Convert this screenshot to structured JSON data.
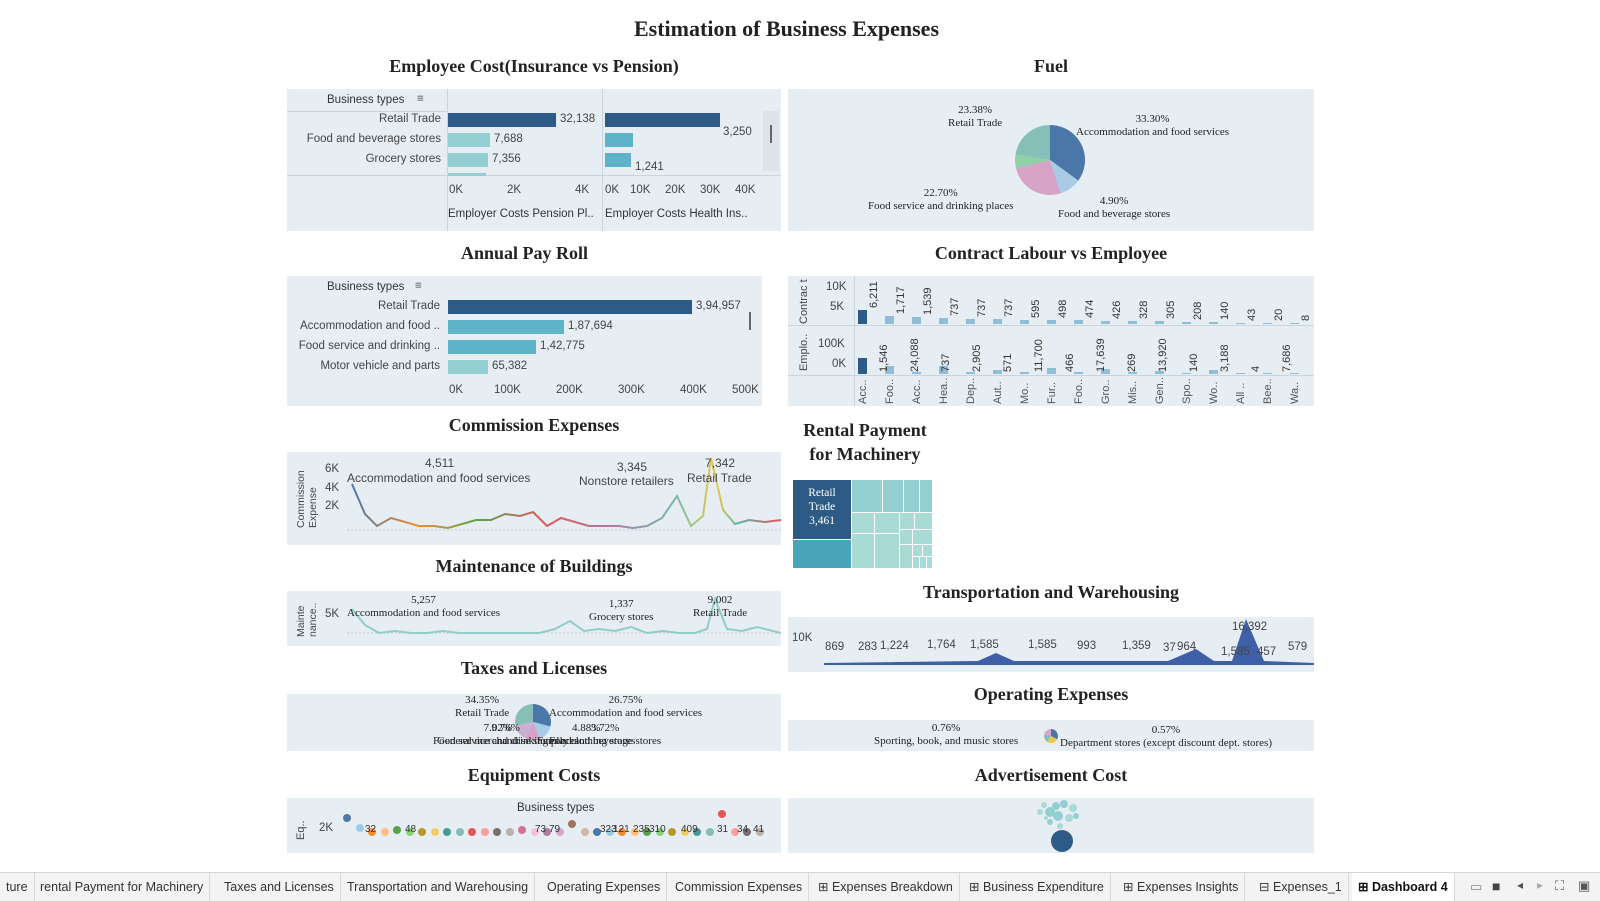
{
  "dashboard_title": "Estimation of Business Expenses",
  "employee_cost": {
    "title": "Employee Cost(Insurance vs Pension)",
    "header": "Business types",
    "rows": [
      "Retail Trade",
      "Food and beverage stores",
      "Grocery stores"
    ],
    "pension_values": [
      "32,138",
      "7,688",
      "7,356"
    ],
    "health_values": [
      "3,250",
      "1,241"
    ],
    "pension_ticks": [
      "0K",
      "2K",
      "4K"
    ],
    "health_ticks": [
      "0K",
      "10K",
      "20K",
      "30K",
      "40K"
    ],
    "pension_axis": "Employer Costs Pension Pl..",
    "health_axis": "Employer Costs Health Ins.."
  },
  "fuel": {
    "title": "Fuel",
    "slices": [
      {
        "pct": "33.30%",
        "name": "Accommodation and food services"
      },
      {
        "pct": "4.90%",
        "name": "Food and beverage stores"
      },
      {
        "pct": "22.70%",
        "name": "Food service and drinking places"
      },
      {
        "pct": "23.38%",
        "name": "Retail Trade"
      }
    ]
  },
  "payroll": {
    "title": "Annual Pay Roll",
    "header": "Business types",
    "rows": [
      "Retail Trade",
      "Accommodation and food ..",
      "Food service and drinking ..",
      "Motor vehicle and parts"
    ],
    "values": [
      "3,94,957",
      "1,87,694",
      "1,42,775",
      "65,382"
    ],
    "ticks": [
      "0K",
      "100K",
      "200K",
      "300K",
      "400K",
      "500K"
    ]
  },
  "contract": {
    "title": "Contract Labour vs Employee",
    "top_axis_label": "Contrac t Labor..",
    "bottom_axis_label": "Emplo..",
    "top_ticks": [
      "10K",
      "5K"
    ],
    "bottom_ticks": [
      "100K",
      "0K"
    ],
    "top_values": [
      "6,211",
      "1,717",
      "1,539",
      "737",
      "737",
      "737",
      "595",
      "498",
      "474",
      "426",
      "328",
      "305",
      "208",
      "140",
      "43",
      "20",
      "8"
    ],
    "bottom_values": [
      "1,546",
      "24,088",
      "737",
      "2,905",
      "571",
      "11,700",
      "466",
      "17,639",
      "269",
      "13,920",
      "140",
      "3,188",
      "4",
      "7,686"
    ],
    "categories": [
      "Acc..",
      "Foo..",
      "Acc..",
      "Hea..",
      "Dep..",
      "Aut..",
      "Mo..",
      "Fur..",
      "Foo..",
      "Gro..",
      "Mis..",
      "Gen..",
      "Spo..",
      "Wo..",
      "All ..",
      "Bee..",
      "Wa.."
    ]
  },
  "commission": {
    "title": "Commission Expenses",
    "axis_label": "Commission Expense",
    "ticks": [
      "6K",
      "4K",
      "2K"
    ],
    "annotations": [
      {
        "value": "4,511",
        "name": "Accommodation and food services"
      },
      {
        "value": "3,345",
        "name": "Nonstore retailers"
      },
      {
        "value": "7,342",
        "name": "Retail Trade"
      }
    ]
  },
  "rental": {
    "title_line1": "Rental Payment",
    "title_line2": "for Machinery",
    "main_name": "Retail Trade",
    "main_value": "3,461"
  },
  "maintenance": {
    "title": "Maintenance of Buildings",
    "axis_label": "Mainte nance..",
    "ticks": [
      "5K"
    ],
    "annotations": [
      {
        "value": "5,257",
        "name": "Accommodation and food services"
      },
      {
        "value": "1,337",
        "name": "Grocery stores"
      },
      {
        "value": "9,002",
        "name": "Retail Trade"
      }
    ]
  },
  "transport": {
    "title": "Transportation and Warehousing",
    "tick": "10K",
    "labels": [
      "869",
      "283",
      "1,224",
      "1,764",
      "1,585",
      "1,585",
      "993",
      "1,359",
      "37",
      "964",
      "16,392",
      "1,585",
      "457",
      "579"
    ]
  },
  "taxes": {
    "title": "Taxes and Licenses",
    "labels": [
      {
        "pct": "34.35%",
        "name": "Retail Trade"
      },
      {
        "pct": "26.75%",
        "name": "Accommodation and food services"
      },
      {
        "pct": "9.76%",
        "name": "Food service and drinking places"
      },
      {
        "pct": "7.02%",
        "name": "General merchandise stores"
      },
      {
        "pct": "4.88%",
        "name": "Family clothing stores"
      },
      {
        "pct": "3.72%",
        "name": "Food and beverage stores"
      }
    ]
  },
  "operating": {
    "title": "Operating Expenses",
    "labels": [
      {
        "pct": "0.76%",
        "name": "Sporting, book, and  music stores"
      },
      {
        "pct": "0.57%",
        "name": "Department stores (except discount dept. stores)"
      }
    ]
  },
  "equipment": {
    "title": "Equipment Costs",
    "header": "Business types",
    "axis_label": "Eq..",
    "tick": "2K",
    "labels": [
      "32",
      "48",
      "73",
      "79",
      "323",
      "121",
      "235",
      "310",
      "409",
      "31",
      "34",
      "41"
    ]
  },
  "advertisement": {
    "title": "Advertisement Cost"
  },
  "tabs": [
    "ture",
    "rental Payment for Machinery",
    "Taxes and Licenses",
    "Transportation and Warehousing",
    "Operating Expenses",
    "Commission Expenses",
    "Expenses Breakdown",
    "Business Expenditure",
    "Expenses Insights",
    "Expenses_1",
    "Dashboard 4"
  ],
  "colors": {
    "panel_bg": "#e6eef4",
    "dark_blue": "#2e5b86",
    "teal": "#5fb3c8",
    "light_teal": "#93cfd0"
  }
}
